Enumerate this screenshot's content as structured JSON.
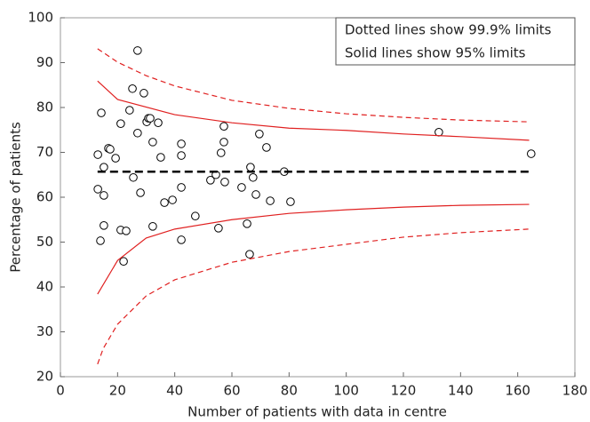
{
  "chart_data": {
    "type": "scatter",
    "xlabel": "Number of patients with data in centre",
    "ylabel": "Percentage of patients",
    "annotations": [
      "Dotted lines show 99.9% limits",
      "Solid lines show 95% limits"
    ],
    "xlim": [
      0,
      180
    ],
    "xticks": [
      0,
      20,
      40,
      60,
      80,
      100,
      120,
      140,
      160,
      180
    ],
    "ylim": [
      20,
      100
    ],
    "yticks": [
      20,
      30,
      40,
      50,
      60,
      70,
      80,
      90,
      100
    ],
    "grid": false,
    "series": [
      {
        "type": "scatter",
        "color": "#000000",
        "x": [
          13.1,
          14.3,
          13.1,
          15.2,
          15.2,
          15.2,
          14.0,
          16.8,
          17.4,
          19.3,
          21.1,
          21.1,
          23.0,
          22.1,
          24.2,
          25.2,
          25.5,
          27.0,
          27.0,
          28.0,
          29.2,
          30.2,
          30.8,
          31.4,
          32.3,
          32.3,
          34.2,
          35.1,
          36.4,
          39.2,
          42.3,
          42.3,
          42.3,
          42.3,
          47.2,
          52.5,
          54.4,
          55.3,
          56.2,
          57.2,
          57.2,
          57.5,
          63.4,
          65.3,
          66.5,
          66.2,
          67.4,
          68.4,
          69.6,
          72.1,
          73.4,
          78.3,
          80.5,
          132.4,
          164.7
        ],
        "values": [
          69.5,
          78.8,
          61.8,
          66.7,
          60.4,
          53.7,
          50.3,
          70.9,
          70.7,
          68.7,
          76.4,
          52.7,
          52.5,
          45.7,
          79.4,
          84.2,
          64.4,
          92.7,
          74.3,
          61.0,
          83.2,
          76.8,
          77.6,
          77.6,
          72.3,
          53.5,
          76.6,
          68.9,
          58.8,
          59.4,
          71.9,
          69.3,
          62.2,
          50.5,
          55.8,
          63.8,
          65.0,
          53.1,
          69.9,
          75.8,
          72.3,
          63.4,
          62.2,
          54.1,
          66.7,
          47.3,
          64.4,
          60.6,
          74.1,
          71.1,
          59.2,
          65.7,
          59.0,
          74.5,
          69.7
        ]
      },
      {
        "type": "line",
        "color": "#000000",
        "dash": "dashed",
        "width": 2.5,
        "x": [
          13,
          165
        ],
        "values": [
          65.7,
          65.7
        ]
      },
      {
        "type": "line",
        "color": "#e02020",
        "dash": "solid",
        "width": 1.2,
        "x": [
          13,
          20,
          40,
          60,
          80,
          100,
          120,
          140,
          164
        ],
        "values": [
          85.9,
          81.8,
          78.4,
          76.6,
          75.4,
          74.9,
          74.1,
          73.5,
          72.7
        ]
      },
      {
        "type": "line",
        "color": "#e02020",
        "dash": "solid",
        "width": 1.2,
        "x": [
          13,
          20,
          30,
          40,
          60,
          80,
          100,
          120,
          140,
          164
        ],
        "values": [
          38.4,
          45.9,
          50.9,
          52.9,
          55.0,
          56.4,
          57.2,
          57.8,
          58.2,
          58.4
        ]
      },
      {
        "type": "line",
        "color": "#e02020",
        "dash": "dashed",
        "width": 1.2,
        "x": [
          13,
          20,
          30,
          40,
          60,
          80,
          100,
          120,
          140,
          164
        ],
        "values": [
          93.1,
          90.1,
          87.1,
          84.8,
          81.6,
          79.8,
          78.6,
          77.8,
          77.2,
          76.8
        ]
      },
      {
        "type": "line",
        "color": "#e02020",
        "dash": "dashed",
        "width": 1.2,
        "x": [
          13,
          15,
          20,
          30,
          40,
          60,
          80,
          100,
          120,
          140,
          164
        ],
        "values": [
          22.8,
          26.3,
          31.7,
          38.0,
          41.6,
          45.5,
          47.9,
          49.5,
          51.1,
          52.1,
          52.9
        ]
      }
    ]
  }
}
